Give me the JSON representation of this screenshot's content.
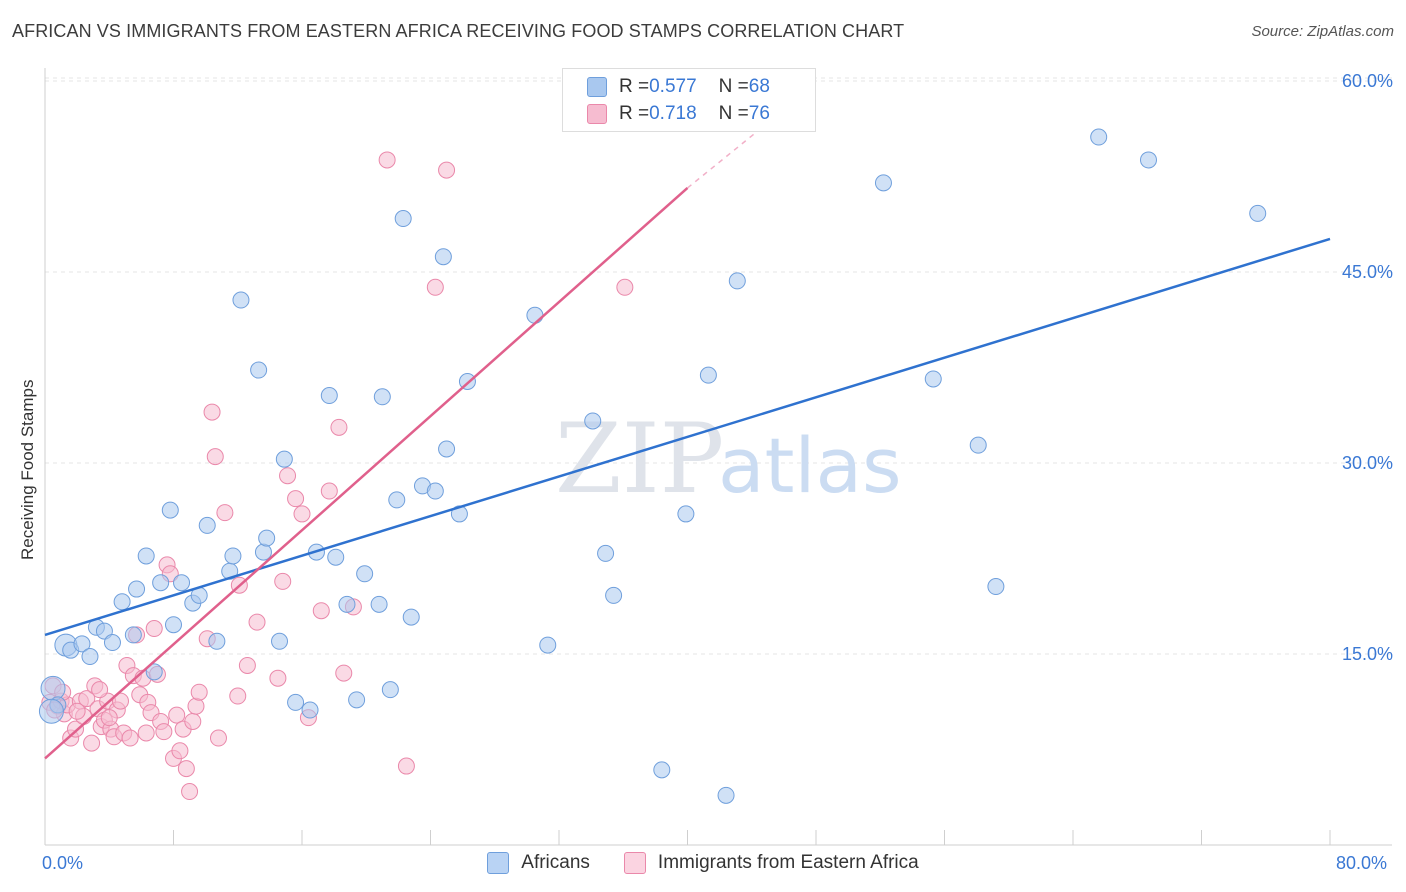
{
  "title": "AFRICAN VS IMMIGRANTS FROM EASTERN AFRICA RECEIVING FOOD STAMPS CORRELATION CHART",
  "source": "Source: ZipAtlas.com",
  "watermark_zip": "ZIP",
  "watermark_atlas": "atlas",
  "legend": {
    "row1": {
      "r_label": "R = ",
      "r_value": "0.577",
      "n_label": "N = ",
      "n_value": "68"
    },
    "row2": {
      "r_label": "R = ",
      "r_value": "0.718",
      "n_label": "N = ",
      "n_value": "76"
    }
  },
  "colors": {
    "africans_fill": "#a9c8ef",
    "africans_stroke": "#6f9fdc",
    "africans_line": "#2f72cf",
    "eastern_fill": "#f6bcd0",
    "eastern_stroke": "#ea88aa",
    "eastern_line": "#e0608c",
    "axis_text": "#3a78d4"
  },
  "chart_data": {
    "type": "scatter",
    "title": "AFRICAN VS IMMIGRANTS FROM EASTERN AFRICA RECEIVING FOOD STAMPS CORRELATION CHART",
    "xlabel": "",
    "ylabel": "Receiving Food Stamps",
    "xlim": [
      0,
      80
    ],
    "ylim": [
      0,
      60
    ],
    "x_tick_labels": [
      "0.0%",
      "80.0%"
    ],
    "y_ticks": [
      15,
      30,
      45,
      60
    ],
    "y_tick_labels": [
      "15.0%",
      "30.0%",
      "45.0%",
      "60.0%"
    ],
    "grid": true,
    "legend_position": "top-center",
    "series": [
      {
        "name": "Africans",
        "r": 0.577,
        "n": 68,
        "trend": {
          "x": [
            0,
            80
          ],
          "y": [
            16.5,
            47.6
          ]
        },
        "points": [
          [
            0.5,
            12.3
          ],
          [
            0.8,
            11.0
          ],
          [
            1.3,
            15.7
          ],
          [
            1.6,
            15.3
          ],
          [
            2.3,
            15.8
          ],
          [
            2.8,
            14.8
          ],
          [
            3.2,
            17.1
          ],
          [
            3.7,
            16.8
          ],
          [
            4.2,
            15.9
          ],
          [
            4.8,
            19.1
          ],
          [
            5.5,
            16.5
          ],
          [
            5.7,
            20.1
          ],
          [
            6.3,
            22.7
          ],
          [
            6.8,
            13.6
          ],
          [
            7.2,
            20.6
          ],
          [
            7.8,
            26.3
          ],
          [
            8.0,
            17.3
          ],
          [
            8.5,
            20.6
          ],
          [
            9.2,
            19.0
          ],
          [
            9.6,
            19.6
          ],
          [
            10.1,
            25.1
          ],
          [
            10.7,
            16.0
          ],
          [
            11.5,
            21.5
          ],
          [
            11.7,
            22.7
          ],
          [
            12.2,
            42.8
          ],
          [
            13.3,
            37.3
          ],
          [
            13.6,
            23.0
          ],
          [
            13.8,
            24.1
          ],
          [
            14.6,
            16.0
          ],
          [
            14.9,
            30.3
          ],
          [
            15.6,
            11.2
          ],
          [
            16.5,
            10.6
          ],
          [
            16.9,
            23.0
          ],
          [
            17.7,
            35.3
          ],
          [
            18.1,
            22.6
          ],
          [
            18.8,
            18.9
          ],
          [
            19.4,
            11.4
          ],
          [
            19.9,
            21.3
          ],
          [
            20.8,
            18.9
          ],
          [
            21.0,
            35.2
          ],
          [
            21.5,
            12.2
          ],
          [
            21.9,
            27.1
          ],
          [
            22.3,
            49.2
          ],
          [
            22.8,
            17.9
          ],
          [
            23.5,
            28.2
          ],
          [
            24.3,
            27.8
          ],
          [
            25.0,
            31.1
          ],
          [
            24.8,
            46.2
          ],
          [
            25.8,
            26.0
          ],
          [
            26.3,
            36.4
          ],
          [
            30.5,
            41.6
          ],
          [
            31.3,
            15.7
          ],
          [
            34.1,
            33.3
          ],
          [
            34.9,
            22.9
          ],
          [
            35.4,
            19.6
          ],
          [
            38.4,
            5.9
          ],
          [
            39.9,
            26.0
          ],
          [
            41.3,
            36.9
          ],
          [
            42.4,
            3.9
          ],
          [
            43.1,
            44.3
          ],
          [
            52.2,
            52.0
          ],
          [
            55.3,
            36.6
          ],
          [
            58.1,
            31.4
          ],
          [
            59.2,
            20.3
          ],
          [
            65.6,
            55.6
          ],
          [
            68.7,
            53.8
          ],
          [
            75.5,
            49.6
          ],
          [
            0.4,
            10.5
          ]
        ]
      },
      {
        "name": "Immigrants from Eastern Africa",
        "r": 0.718,
        "n": 76,
        "trend": {
          "x": [
            0,
            40
          ],
          "y": [
            6.8,
            51.6
          ]
        },
        "trend_dashed": {
          "x": [
            40,
            44.5
          ],
          "y": [
            51.6,
            56.2
          ]
        },
        "points": [
          [
            0.3,
            11.2
          ],
          [
            0.5,
            12.5
          ],
          [
            0.8,
            10.9
          ],
          [
            1.0,
            11.3
          ],
          [
            1.2,
            10.3
          ],
          [
            1.4,
            11.0
          ],
          [
            1.6,
            8.4
          ],
          [
            1.9,
            9.1
          ],
          [
            2.2,
            11.3
          ],
          [
            2.4,
            10.1
          ],
          [
            2.6,
            11.5
          ],
          [
            2.9,
            8.0
          ],
          [
            3.1,
            12.5
          ],
          [
            3.3,
            10.7
          ],
          [
            3.5,
            9.3
          ],
          [
            3.7,
            9.8
          ],
          [
            3.9,
            11.3
          ],
          [
            4.1,
            9.1
          ],
          [
            4.3,
            8.5
          ],
          [
            4.5,
            10.6
          ],
          [
            4.7,
            11.3
          ],
          [
            4.9,
            8.8
          ],
          [
            5.1,
            14.1
          ],
          [
            5.3,
            8.4
          ],
          [
            5.5,
            13.3
          ],
          [
            5.7,
            16.5
          ],
          [
            5.9,
            11.8
          ],
          [
            6.1,
            13.1
          ],
          [
            6.3,
            8.8
          ],
          [
            6.4,
            11.2
          ],
          [
            6.6,
            10.4
          ],
          [
            6.8,
            17.0
          ],
          [
            7.0,
            13.4
          ],
          [
            7.2,
            9.7
          ],
          [
            7.4,
            8.9
          ],
          [
            7.6,
            22.0
          ],
          [
            7.8,
            21.3
          ],
          [
            8.0,
            6.8
          ],
          [
            8.2,
            10.2
          ],
          [
            8.4,
            7.4
          ],
          [
            8.6,
            9.1
          ],
          [
            8.8,
            6.0
          ],
          [
            9.0,
            4.2
          ],
          [
            9.2,
            9.7
          ],
          [
            9.4,
            10.9
          ],
          [
            9.6,
            12.0
          ],
          [
            10.1,
            16.2
          ],
          [
            10.4,
            34.0
          ],
          [
            10.6,
            30.5
          ],
          [
            10.8,
            8.4
          ],
          [
            11.2,
            26.1
          ],
          [
            12.1,
            20.4
          ],
          [
            12.6,
            14.1
          ],
          [
            13.2,
            17.5
          ],
          [
            14.5,
            13.1
          ],
          [
            14.8,
            20.7
          ],
          [
            15.1,
            29.0
          ],
          [
            15.6,
            27.2
          ],
          [
            16.0,
            26.0
          ],
          [
            16.4,
            10.0
          ],
          [
            17.2,
            18.4
          ],
          [
            17.7,
            27.8
          ],
          [
            18.3,
            32.8
          ],
          [
            18.6,
            13.5
          ],
          [
            19.2,
            18.7
          ],
          [
            21.3,
            53.8
          ],
          [
            22.5,
            6.2
          ],
          [
            24.3,
            43.8
          ],
          [
            25.0,
            53.0
          ],
          [
            36.1,
            43.8
          ],
          [
            0.6,
            10.6
          ],
          [
            1.1,
            12.0
          ],
          [
            2.0,
            10.5
          ],
          [
            3.4,
            12.2
          ],
          [
            4.0,
            10.0
          ],
          [
            12.0,
            11.7
          ]
        ]
      }
    ]
  },
  "bottom_legend": [
    "Africans",
    "Immigrants from Eastern Africa"
  ]
}
